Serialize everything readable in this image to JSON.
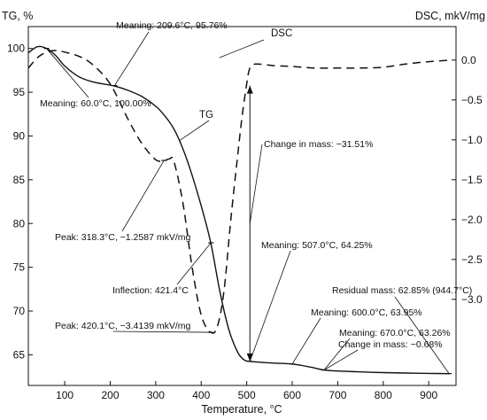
{
  "chart_data": {
    "type": "line",
    "xlabel": "Temperature, °C",
    "ylabel_left": "TG, %",
    "ylabel_right": "DSC, mkV/mg",
    "xlim": [
      20,
      960
    ],
    "ylim_left": [
      61.5,
      102.5
    ],
    "ylim_right": [
      -4.08,
      0.42
    ],
    "x_ticks": [
      100,
      200,
      300,
      400,
      500,
      600,
      700,
      800,
      900
    ],
    "y_left_ticks": [
      65,
      70,
      75,
      80,
      85,
      90,
      95,
      100
    ],
    "y_right_ticks": [
      0.0,
      -0.5,
      -1.0,
      -1.5,
      -2.0,
      -2.5,
      -3.0
    ],
    "y_right_tick_labels": [
      "0.0",
      "−0.5",
      "−1.0",
      "−1.5",
      "−2.0",
      "−2.5",
      "−3.0"
    ],
    "grid": false,
    "series": [
      {
        "name": "TG",
        "axis": "left",
        "style": "solid",
        "x": [
          20,
          40,
          60,
          80,
          100,
          130,
          160,
          190,
          210,
          240,
          270,
          300,
          320,
          340,
          360,
          380,
          400,
          421,
          440,
          460,
          480,
          495,
          507,
          530,
          560,
          600,
          640,
          670,
          700,
          750,
          800,
          850,
          900,
          945
        ],
        "y": [
          99.5,
          100.2,
          100.0,
          99.2,
          98.0,
          96.8,
          96.2,
          95.9,
          95.7,
          95.2,
          94.5,
          93.4,
          92.3,
          90.8,
          88.5,
          85.5,
          82.0,
          77.8,
          72.5,
          68.0,
          65.3,
          64.4,
          64.25,
          64.15,
          64.05,
          63.95,
          63.6,
          63.26,
          63.15,
          63.05,
          62.97,
          62.92,
          62.88,
          62.85
        ]
      },
      {
        "name": "DSC",
        "axis": "right",
        "style": "dashed",
        "x": [
          20,
          40,
          60,
          80,
          100,
          130,
          160,
          200,
          240,
          270,
          300,
          318,
          330,
          340,
          360,
          380,
          400,
          420,
          435,
          450,
          465,
          480,
          490,
          500,
          507,
          520,
          560,
          600,
          650,
          700,
          750,
          800,
          850,
          900,
          950
        ],
        "y": [
          -0.1,
          0.03,
          0.1,
          0.12,
          0.1,
          0.05,
          -0.05,
          -0.3,
          -0.75,
          -1.05,
          -1.25,
          -1.26,
          -1.24,
          -1.27,
          -1.8,
          -2.6,
          -3.2,
          -3.41,
          -3.35,
          -2.9,
          -2.0,
          -1.2,
          -0.7,
          -0.3,
          -0.1,
          -0.05,
          -0.07,
          -0.08,
          -0.1,
          -0.1,
          -0.1,
          -0.09,
          -0.05,
          -0.02,
          0.0
        ]
      }
    ],
    "labels": [
      {
        "id": "tg",
        "text": "TG"
      },
      {
        "id": "dsc",
        "text": "DSC"
      }
    ],
    "annotations": [
      {
        "id": "m209",
        "text": "Meaning: 209.6°C, 95.76%"
      },
      {
        "id": "m60",
        "text": "Meaning: 60.0°C, 100.00%"
      },
      {
        "id": "cm1",
        "text": "Change in mass: −31.51%"
      },
      {
        "id": "peak318",
        "text": "Peak: 318.3°C, −1.2587 mkV/mg"
      },
      {
        "id": "infl",
        "text": "Inflection: 421.4°C"
      },
      {
        "id": "m507",
        "text": "Meaning: 507.0°C, 64.25%"
      },
      {
        "id": "resid",
        "text": "Residual mass: 62.85% (944.7°C)"
      },
      {
        "id": "m600",
        "text": "Meaning: 600.0°C, 63.95%"
      },
      {
        "id": "m670",
        "text": "Meaning: 670.0°C, 63.26%"
      },
      {
        "id": "cm2",
        "text": "Change in mass: −0.68%"
      },
      {
        "id": "peak420",
        "text": "Peak: 420.1°C, −3.4139 mkV/mg"
      }
    ]
  }
}
